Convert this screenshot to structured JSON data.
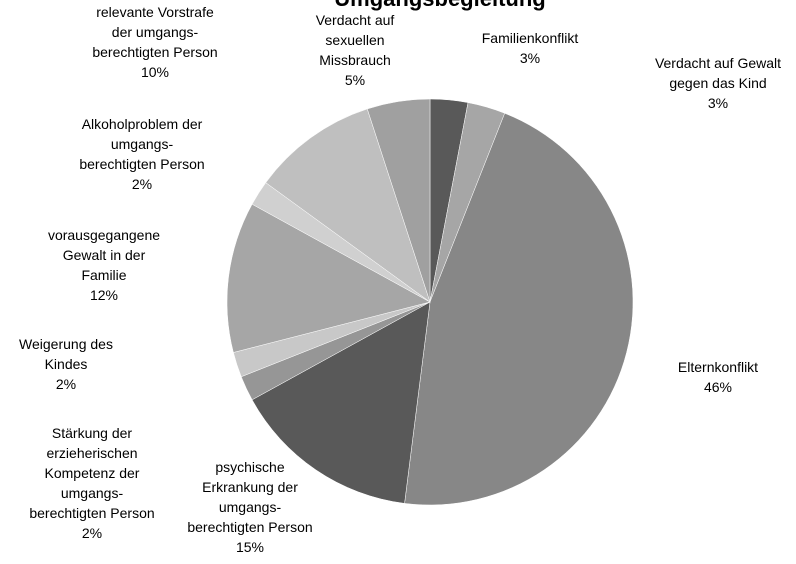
{
  "chart_data": {
    "type": "pie",
    "title": "Umgangsbegleitung",
    "categories": [
      "Familienkonflikt",
      "Verdacht auf Gewalt\ngegen das Kind",
      "Elternkonflikt",
      "psychische\nErkrankung der\numgangs-\nberechtigten Person",
      "Stärkung der\nerzieherischen\nKompetenz der\numgangs-\nberechtigten Person",
      "Weigerung des\nKindes",
      "vorausgegangene\nGewalt in der\nFamilie",
      "Alkoholproblem der\numgangs-\nberechtigten Person",
      "relevante Vorstrafe\nder umgangs-\nberechtigten Person",
      "Verdacht auf\nsexuellen\nMissbrauch"
    ],
    "values": [
      3,
      3,
      46,
      15,
      2,
      2,
      12,
      2,
      10,
      5
    ],
    "value_labels": [
      "3%",
      "3%",
      "46%",
      "15%",
      "2%",
      "2%",
      "12%",
      "2%",
      "10%",
      "5%"
    ],
    "colors": [
      "#595959",
      "#a6a6a6",
      "#878787",
      "#595959",
      "#969696",
      "#c8c8c8",
      "#a6a6a6",
      "#d0d0d0",
      "#bfbfbf",
      "#a0a0a0"
    ]
  }
}
